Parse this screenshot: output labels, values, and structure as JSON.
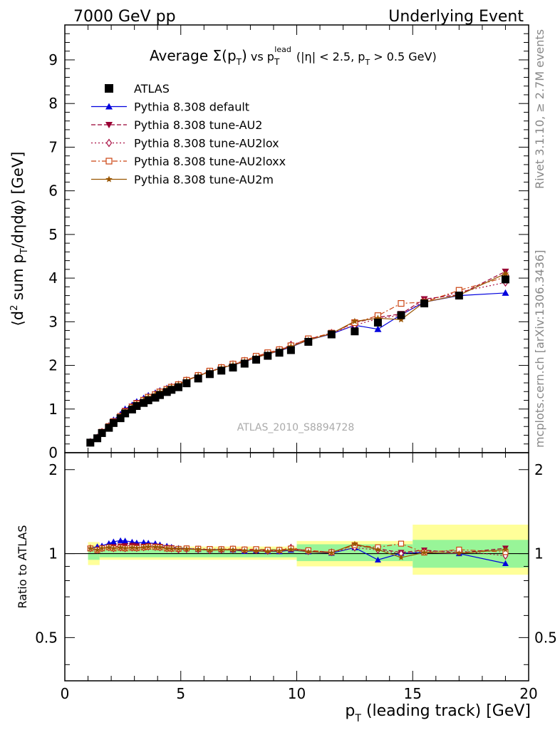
{
  "header": {
    "left": "7000 GeV pp",
    "right": "Underlying Event",
    "side_top": "Rivet 3.1.10, ≥ 2.7M events",
    "side_bottom": "mcplots.cern.ch [arXiv:1306.3436]"
  },
  "chart_data": {
    "type": "scatter",
    "title": "Average Σ(p_T) vs p_T^lead (|η| < 2.5, p_T > 0.5 GeV)",
    "analysis_label": "ATLAS_2010_S8894728",
    "xlabel": "p_T (leading track) [GeV]",
    "ylabel": "⟨d² sum p_T/dηdφ⟩ [GeV]",
    "ratio_ylabel": "Ratio to ATLAS",
    "xlim": [
      0,
      20
    ],
    "ylim": [
      0,
      9.8
    ],
    "ratio_ylim": [
      0.35,
      2.3
    ],
    "xticks": [
      "0",
      "5",
      "10",
      "15",
      "20"
    ],
    "yticks": [
      "0",
      "1",
      "2",
      "3",
      "4",
      "5",
      "6",
      "7",
      "8",
      "9"
    ],
    "ratio_yticks": [
      "0.5",
      "1",
      "2"
    ],
    "legend_position": "top-left",
    "x": [
      1.1,
      1.4,
      1.6,
      1.9,
      2.1,
      2.4,
      2.6,
      2.9,
      3.1,
      3.4,
      3.6,
      3.9,
      4.1,
      4.4,
      4.6,
      4.9,
      5.25,
      5.75,
      6.25,
      6.75,
      7.25,
      7.75,
      8.25,
      8.75,
      9.25,
      9.75,
      10.5,
      11.5,
      12.5,
      13.5,
      14.5,
      15.5,
      17.0,
      19.0
    ],
    "series": [
      {
        "name": "ATLAS",
        "color": "#000000",
        "marker": "square-filled",
        "line": "none",
        "values": [
          0.23,
          0.33,
          0.45,
          0.57,
          0.68,
          0.79,
          0.9,
          0.99,
          1.07,
          1.14,
          1.2,
          1.26,
          1.32,
          1.39,
          1.44,
          1.5,
          1.59,
          1.7,
          1.8,
          1.88,
          1.95,
          2.04,
          2.13,
          2.22,
          2.29,
          2.35,
          2.54,
          2.71,
          2.78,
          2.98,
          3.15,
          3.42,
          3.6,
          3.97
        ]
      },
      {
        "name": "Pythia 8.308 default",
        "color": "#0000dd",
        "marker": "triangle-up-filled",
        "line": "solid",
        "values": [
          0.24,
          0.35,
          0.48,
          0.62,
          0.75,
          0.88,
          1.0,
          1.09,
          1.17,
          1.25,
          1.31,
          1.37,
          1.42,
          1.48,
          1.52,
          1.57,
          1.66,
          1.76,
          1.86,
          1.94,
          2.01,
          2.08,
          2.18,
          2.26,
          2.33,
          2.42,
          2.58,
          2.72,
          2.92,
          2.83,
          3.16,
          3.45,
          3.6,
          3.66
        ]
      },
      {
        "name": "Pythia 8.308 tune-AU2",
        "color": "#990033",
        "marker": "triangle-down-filled",
        "line": "dashed",
        "values": [
          0.24,
          0.34,
          0.47,
          0.6,
          0.72,
          0.84,
          0.96,
          1.06,
          1.14,
          1.21,
          1.28,
          1.34,
          1.4,
          1.46,
          1.51,
          1.56,
          1.65,
          1.76,
          1.86,
          1.94,
          2.02,
          2.1,
          2.19,
          2.28,
          2.35,
          2.45,
          2.6,
          2.74,
          2.98,
          3.1,
          3.18,
          3.52,
          3.62,
          4.15
        ]
      },
      {
        "name": "Pythia 8.308 tune-AU2lox",
        "color": "#aa1144",
        "marker": "diamond-open",
        "line": "dotted",
        "values": [
          0.24,
          0.34,
          0.47,
          0.6,
          0.71,
          0.83,
          0.94,
          1.04,
          1.12,
          1.2,
          1.27,
          1.33,
          1.39,
          1.45,
          1.5,
          1.55,
          1.65,
          1.76,
          1.85,
          1.94,
          2.02,
          2.1,
          2.19,
          2.27,
          2.35,
          2.47,
          2.59,
          2.74,
          2.92,
          3.07,
          3.15,
          3.48,
          3.68,
          3.9
        ]
      },
      {
        "name": "Pythia 8.308 tune-AU2loxx",
        "color": "#cc4411",
        "marker": "square-open",
        "line": "dashdot",
        "values": [
          0.24,
          0.34,
          0.47,
          0.6,
          0.71,
          0.83,
          0.94,
          1.04,
          1.12,
          1.2,
          1.27,
          1.33,
          1.39,
          1.45,
          1.5,
          1.56,
          1.66,
          1.77,
          1.87,
          1.95,
          2.03,
          2.11,
          2.21,
          2.29,
          2.36,
          2.45,
          2.61,
          2.74,
          2.98,
          3.14,
          3.42,
          3.45,
          3.72,
          4.02
        ]
      },
      {
        "name": "Pythia 8.308 tune-AU2m",
        "color": "#995500",
        "marker": "star-filled",
        "line": "solid",
        "values": [
          0.24,
          0.34,
          0.47,
          0.6,
          0.71,
          0.83,
          0.94,
          1.04,
          1.12,
          1.2,
          1.27,
          1.33,
          1.39,
          1.45,
          1.5,
          1.56,
          1.65,
          1.76,
          1.85,
          1.94,
          2.01,
          2.09,
          2.18,
          2.26,
          2.34,
          2.43,
          2.58,
          2.73,
          3.01,
          3.08,
          3.05,
          3.45,
          3.61,
          4.1
        ]
      }
    ],
    "ratio_bands": {
      "bin_edges": [
        1.0,
        1.5,
        10.0,
        15.0,
        20.0
      ],
      "inner_color": "#98f598",
      "outer_color": "#ffff99",
      "inner": [
        [
          0.95,
          1.06
        ],
        [
          0.97,
          1.04
        ],
        [
          0.94,
          1.08
        ],
        [
          0.89,
          1.12
        ]
      ],
      "outer": [
        [
          0.91,
          1.1
        ],
        [
          0.95,
          1.06
        ],
        [
          0.9,
          1.11
        ],
        [
          0.84,
          1.27
        ]
      ]
    }
  }
}
